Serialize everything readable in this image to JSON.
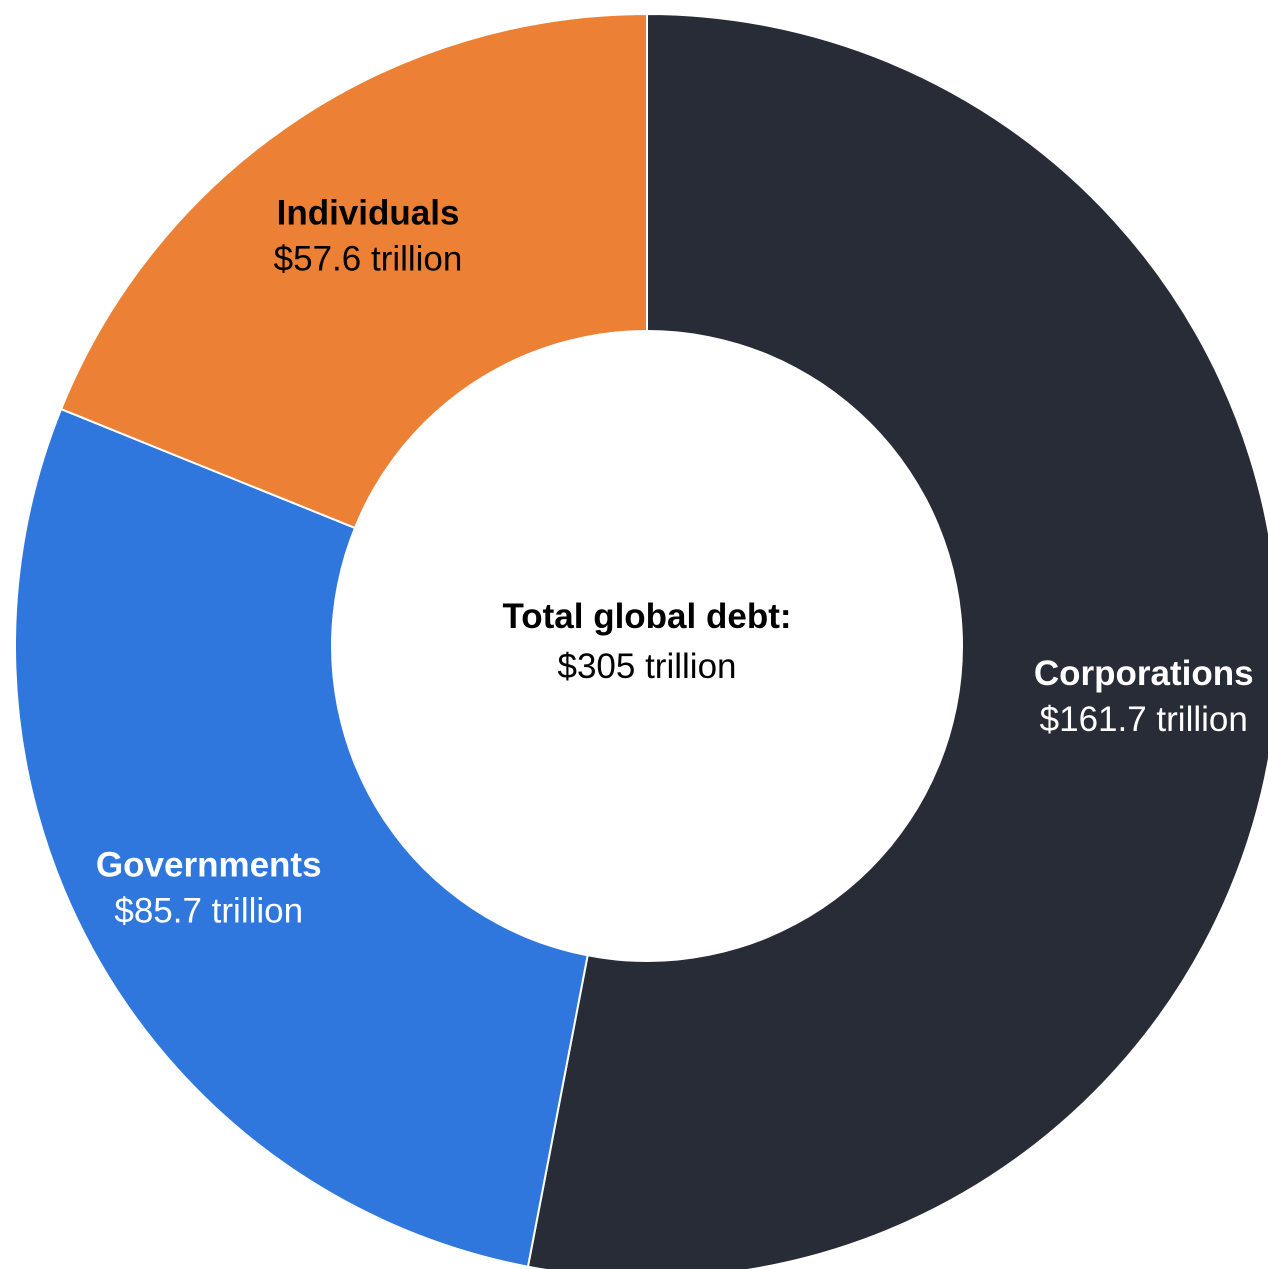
{
  "chart_data": {
    "type": "pie",
    "style": "donut",
    "center_label": {
      "title": "Total global debt:",
      "value_text": "$305 trillion",
      "total": 305
    },
    "unit": "trillion USD",
    "slices": [
      {
        "name": "Corporations",
        "value": 161.7,
        "value_text": "$161.7 trillion",
        "color": "#282c36",
        "label_color": "#ffffff"
      },
      {
        "name": "Governments",
        "value": 85.7,
        "value_text": "$85.7 trillion",
        "color": "#2f77dc",
        "label_color": "#ffffff"
      },
      {
        "name": "Individuals",
        "value": 57.6,
        "value_text": "$57.6 trillion",
        "color": "#ec8034",
        "label_color": "#000000"
      }
    ]
  }
}
